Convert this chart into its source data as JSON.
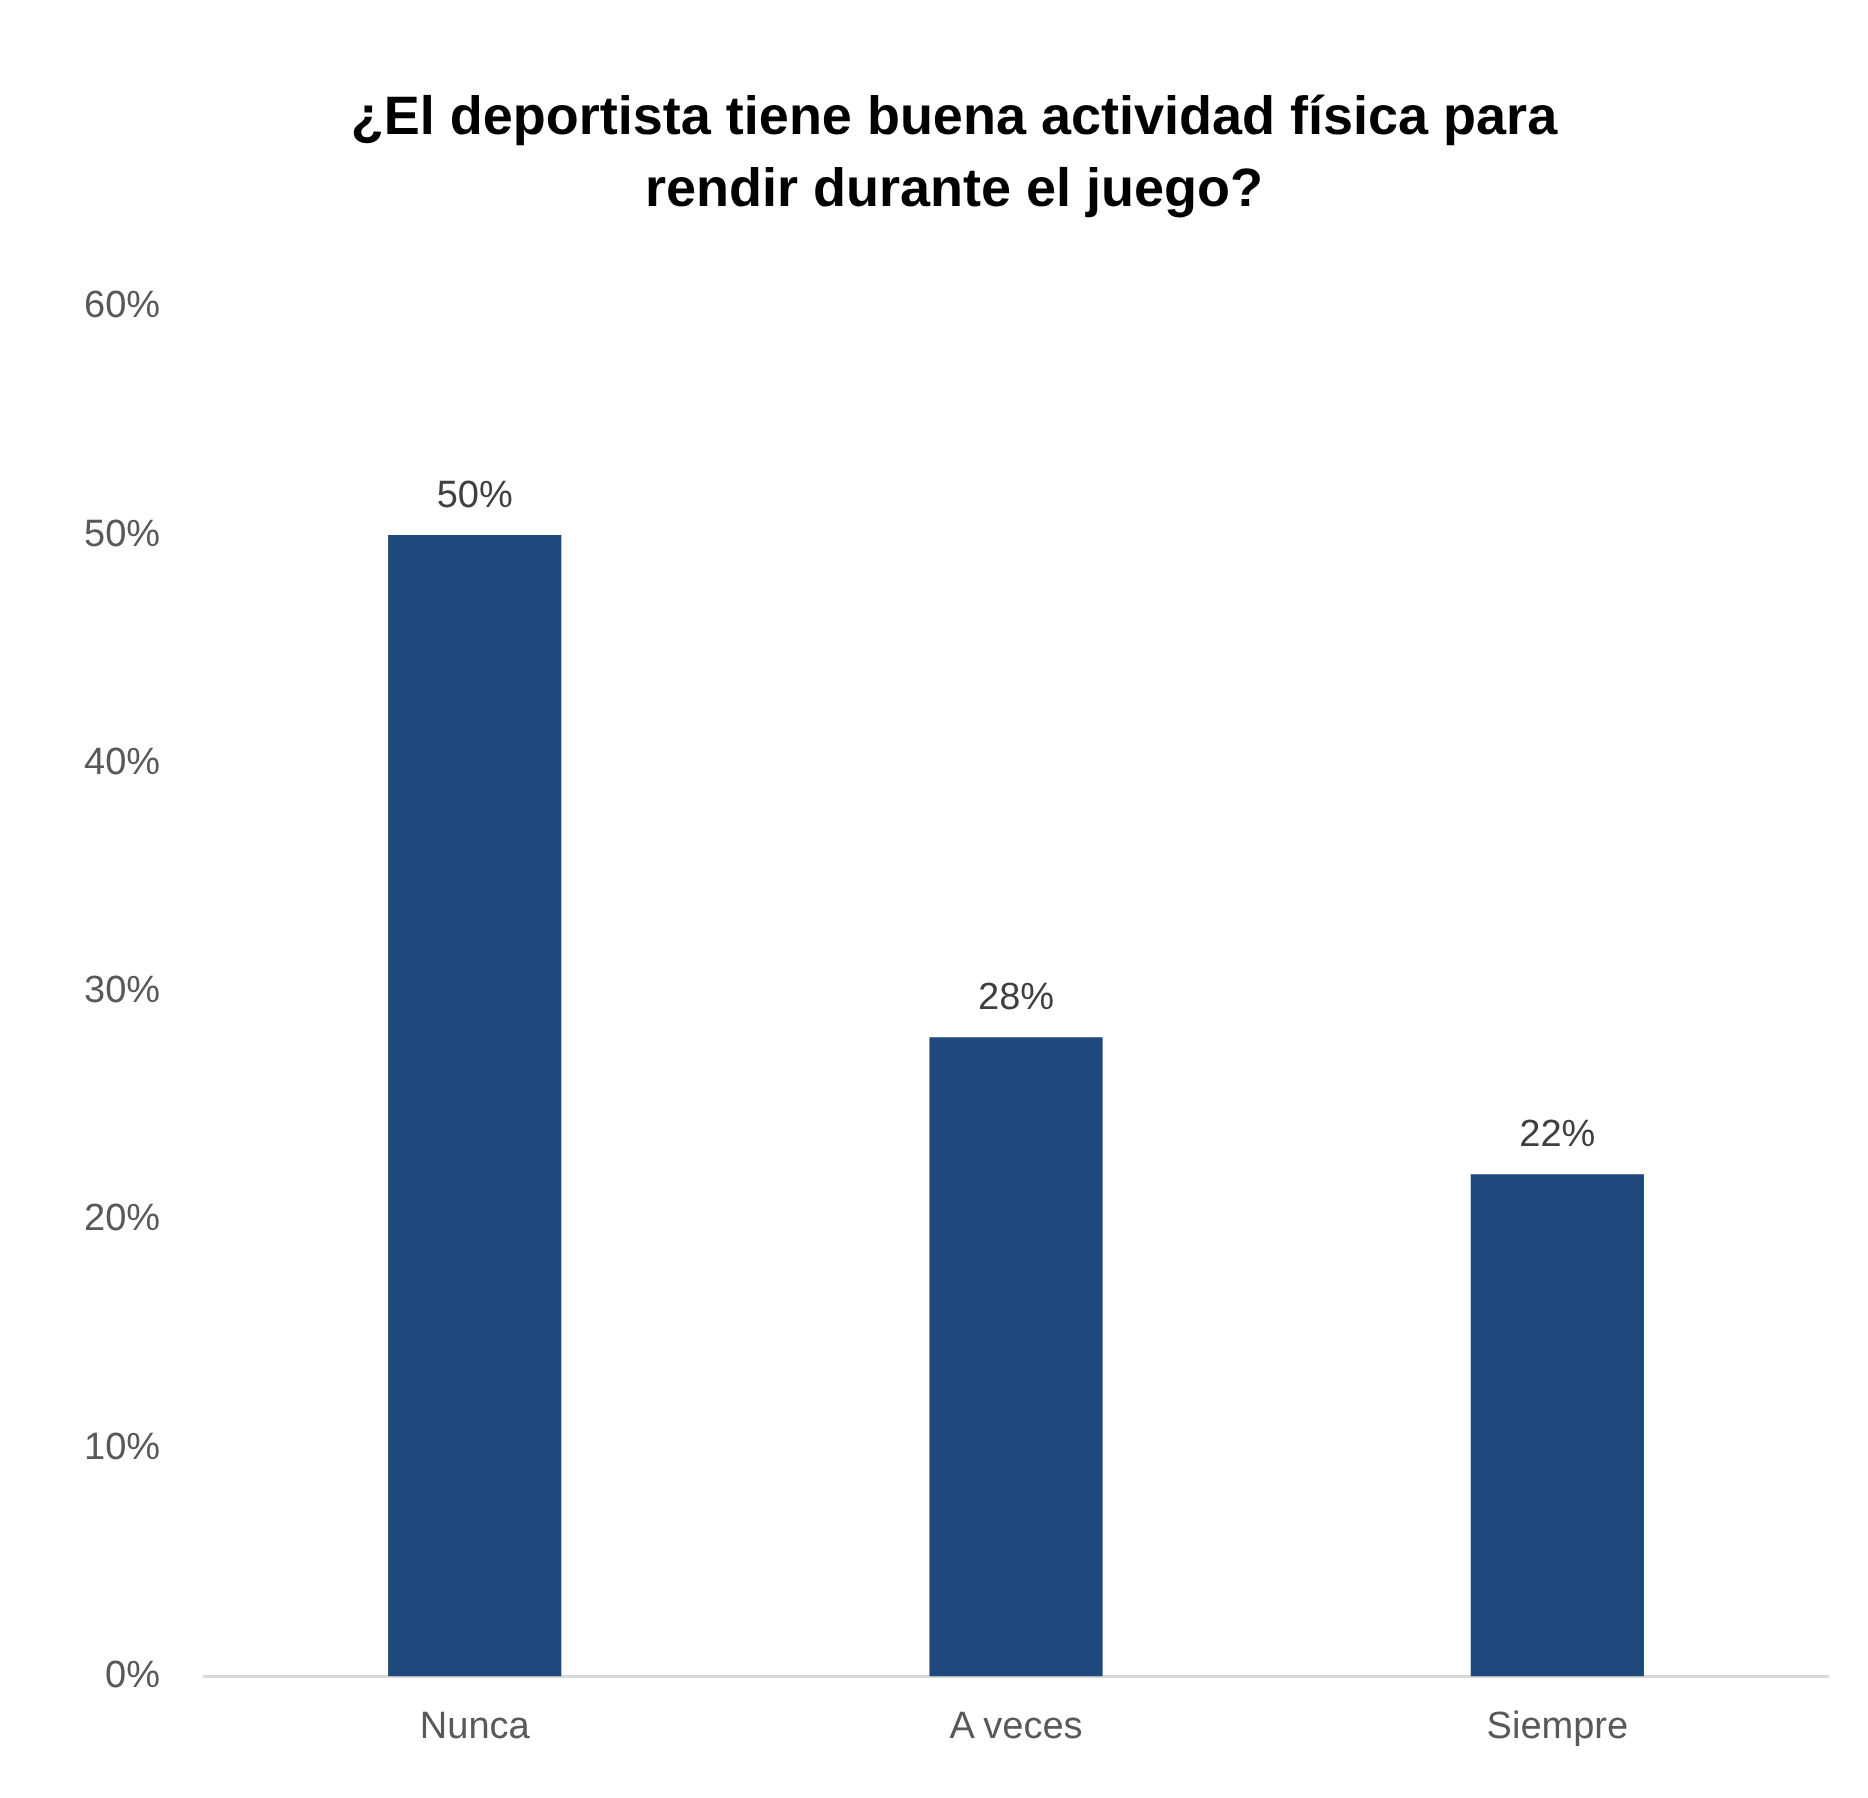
{
  "chart_data": {
    "type": "bar",
    "title": "¿El deportista tiene buena actividad física para rendir durante el juego?",
    "categories": [
      "Nunca",
      "A veces",
      "Siempre"
    ],
    "values": [
      50,
      28,
      22
    ],
    "value_labels": [
      "50%",
      "28%",
      "22%"
    ],
    "color": "#1f497d",
    "ylim": [
      0,
      60
    ],
    "yticks": [
      {
        "value": 0,
        "label": "0%"
      },
      {
        "value": 10,
        "label": "10%"
      },
      {
        "value": 20,
        "label": "20%"
      },
      {
        "value": 30,
        "label": "30%"
      },
      {
        "value": 40,
        "label": "40%"
      },
      {
        "value": 50,
        "label": "50%"
      },
      {
        "value": 60,
        "label": "60%"
      }
    ],
    "grid": false,
    "legend": false
  }
}
